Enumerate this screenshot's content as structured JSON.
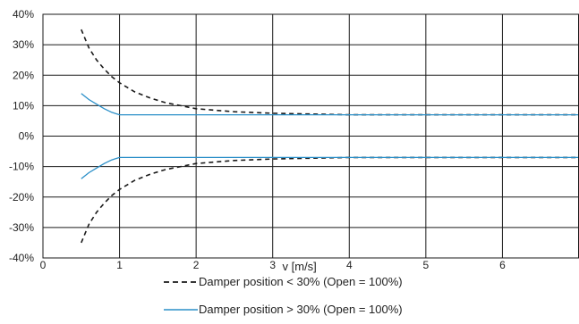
{
  "chart_data": {
    "type": "line",
    "title": "",
    "xlabel": "v [m/s]",
    "ylabel": "",
    "xlim": [
      0,
      7
    ],
    "ylim": [
      -40,
      40
    ],
    "x_ticks": [
      0,
      1,
      2,
      3,
      4,
      5,
      6
    ],
    "x_tick_labels": [
      "0",
      "1",
      "2",
      "3",
      "4",
      "5",
      "6"
    ],
    "y_ticks": [
      40,
      30,
      20,
      10,
      0,
      -10,
      -20,
      -30,
      -40
    ],
    "y_tick_labels": [
      "40%",
      "30%",
      "20%",
      "10%",
      "0%",
      "-10%",
      "-20%",
      "-30%",
      "-40%"
    ],
    "grid": true,
    "legend_position": "bottom-center",
    "series": [
      {
        "name": "Damper position < 30% (Open = 100%)",
        "style": "dashed",
        "color": "#1a1a1a",
        "curves": [
          [
            [
              0.5,
              35
            ],
            [
              0.6,
              29
            ],
            [
              0.7,
              25
            ],
            [
              0.8,
              22
            ],
            [
              0.9,
              19.5
            ],
            [
              1.0,
              17.5
            ],
            [
              1.2,
              14.5
            ],
            [
              1.4,
              12.5
            ],
            [
              1.6,
              11
            ],
            [
              1.8,
              10
            ],
            [
              2.0,
              9
            ],
            [
              2.5,
              8
            ],
            [
              3.0,
              7.5
            ],
            [
              4.0,
              7
            ],
            [
              5.0,
              7
            ],
            [
              6.0,
              7
            ],
            [
              7.0,
              7
            ]
          ],
          [
            [
              0.5,
              -35
            ],
            [
              0.6,
              -29
            ],
            [
              0.7,
              -25
            ],
            [
              0.8,
              -22
            ],
            [
              0.9,
              -19.5
            ],
            [
              1.0,
              -17.5
            ],
            [
              1.2,
              -14.5
            ],
            [
              1.4,
              -12.5
            ],
            [
              1.6,
              -11
            ],
            [
              1.8,
              -10
            ],
            [
              2.0,
              -9
            ],
            [
              2.5,
              -8
            ],
            [
              3.0,
              -7.5
            ],
            [
              4.0,
              -7
            ],
            [
              5.0,
              -7
            ],
            [
              6.0,
              -7
            ],
            [
              7.0,
              -7
            ]
          ]
        ]
      },
      {
        "name": "Damper position > 30% (Open = 100%)",
        "style": "solid",
        "color": "#2a8fc8",
        "curves": [
          [
            [
              0.5,
              14
            ],
            [
              0.6,
              12
            ],
            [
              0.7,
              10.5
            ],
            [
              0.8,
              9
            ],
            [
              0.9,
              7.8
            ],
            [
              1.0,
              7
            ],
            [
              2.0,
              7
            ],
            [
              3.0,
              7
            ],
            [
              4.0,
              7
            ],
            [
              5.0,
              7
            ],
            [
              6.0,
              7
            ],
            [
              7.0,
              7
            ]
          ],
          [
            [
              0.5,
              -14
            ],
            [
              0.6,
              -12
            ],
            [
              0.7,
              -10.5
            ],
            [
              0.8,
              -9
            ],
            [
              0.9,
              -7.8
            ],
            [
              1.0,
              -7
            ],
            [
              2.0,
              -7
            ],
            [
              3.0,
              -7
            ],
            [
              4.0,
              -7
            ],
            [
              5.0,
              -7
            ],
            [
              6.0,
              -7
            ],
            [
              7.0,
              -7
            ]
          ]
        ]
      }
    ]
  }
}
